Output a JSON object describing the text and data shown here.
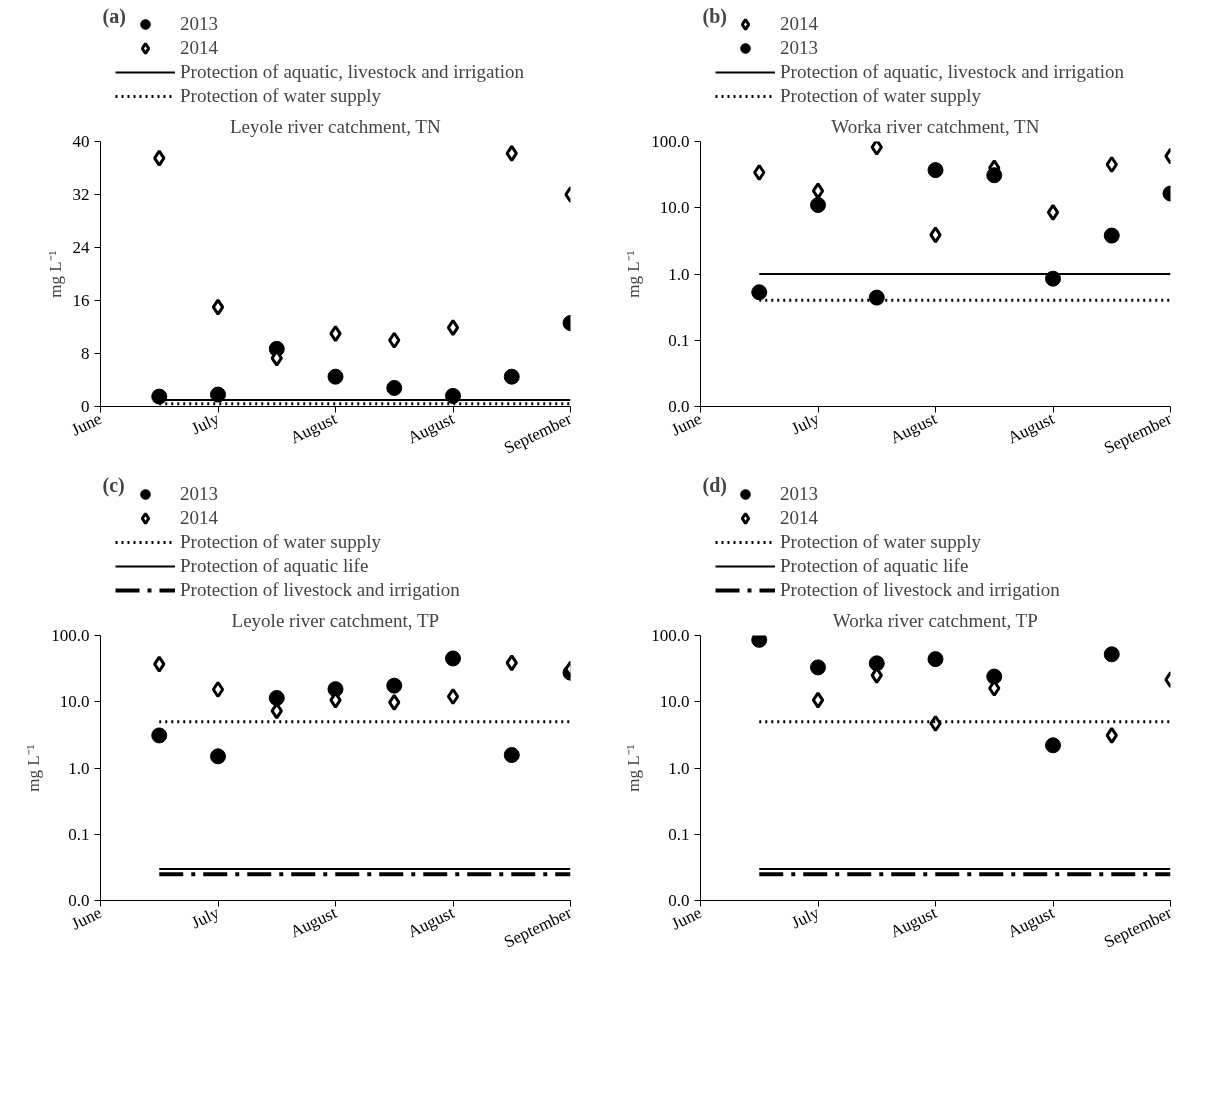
{
  "chart_data": [
    {
      "type": "scatter",
      "title": "Leyole river catchment, TN",
      "ylabel": "mg L⁻¹",
      "annotations": [
        "(a)"
      ],
      "legend": "top left",
      "categories": [
        "June",
        null,
        "July",
        null,
        "August",
        null,
        "August",
        null,
        "September"
      ],
      "ylim": [
        0,
        40
      ],
      "yticks": [
        0,
        8,
        16,
        24,
        32,
        40
      ],
      "series": [
        {
          "name": "2013",
          "color": "#000000",
          "marker": "circle",
          "values": [
            null,
            1.5,
            1.8,
            8.7,
            4.5,
            2.8,
            1.6,
            4.5,
            12.6
          ]
        },
        {
          "name": "2014",
          "color": "#000000",
          "marker": "diamond",
          "values": [
            null,
            37.5,
            15,
            7.3,
            11,
            10,
            11.9,
            38.2,
            32
          ]
        }
      ],
      "ref_lines": [
        {
          "axis": "y",
          "value": 1,
          "label": "Protection of aquatic, livestock and irrigation",
          "line_style": "solid",
          "color": "#000000"
        },
        {
          "axis": "y",
          "value": 0.4,
          "label": "Protection of water supply",
          "line_style": "dotted",
          "color": "#000000"
        }
      ]
    },
    {
      "type": "scatter",
      "title": "Worka river catchment, TN",
      "ylabel": "mg L⁻¹",
      "annotations": [
        "(b)"
      ],
      "legend": "top left",
      "log": true,
      "categories": [
        "June",
        null,
        "July",
        null,
        "August",
        null,
        "August",
        null,
        "September"
      ],
      "ylim": [
        0.01,
        100
      ],
      "yticks": [
        {
          "value": 0.01,
          "label": "0.0"
        },
        {
          "value": 0.1,
          "label": "0.1"
        },
        {
          "value": 1,
          "label": "1.0"
        },
        {
          "value": 10,
          "label": "10.0"
        },
        {
          "value": 100,
          "label": "100.0"
        }
      ],
      "series": [
        {
          "name": "2014",
          "color": "#000000",
          "marker": "diamond",
          "values": [
            null,
            34,
            18,
            82,
            3.9,
            40,
            8.5,
            45,
            60
          ]
        },
        {
          "name": "2013",
          "color": "#000000",
          "marker": "circle",
          "values": [
            null,
            0.53,
            11,
            0.44,
            37,
            31,
            0.85,
            3.8,
            16.4
          ]
        }
      ],
      "ref_lines": [
        {
          "axis": "y",
          "value": 1,
          "label": "Protection of aquatic, livestock and irrigation",
          "line_style": "solid",
          "color": "#000000"
        },
        {
          "axis": "y",
          "value": 0.4,
          "label": "Protection of water supply",
          "line_style": "dotted",
          "color": "#000000"
        }
      ]
    },
    {
      "type": "scatter",
      "title": "Leyole river catchment, TP",
      "ylabel": "mg L⁻¹",
      "annotations": [
        "(c)"
      ],
      "legend": "top left",
      "log": true,
      "categories": [
        "June",
        null,
        "July",
        null,
        "August",
        null,
        "August",
        null,
        "September"
      ],
      "ylim": [
        0.01,
        100
      ],
      "yticks": [
        {
          "value": 0.01,
          "label": "0.0"
        },
        {
          "value": 0.1,
          "label": "0.1"
        },
        {
          "value": 1,
          "label": "1.0"
        },
        {
          "value": 10,
          "label": "10.0"
        },
        {
          "value": 100,
          "label": "100.0"
        }
      ],
      "series": [
        {
          "name": "2013",
          "color": "#000000",
          "marker": "circle",
          "values": [
            null,
            3.1,
            1.5,
            11.4,
            15.5,
            17.5,
            45,
            1.57,
            27.5
          ]
        },
        {
          "name": "2014",
          "color": "#000000",
          "marker": "diamond",
          "values": [
            null,
            37,
            15.3,
            7.3,
            10.6,
            9.8,
            12,
            38.6,
            31
          ]
        }
      ],
      "ref_lines": [
        {
          "axis": "y",
          "value": 5,
          "label": "Protection of water supply",
          "line_style": "dotted",
          "color": "#000000"
        },
        {
          "axis": "y",
          "value": 0.03,
          "label": "Protection of aquatic life",
          "line_style": "solid",
          "color": "#000000"
        },
        {
          "axis": "y",
          "value": 0.025,
          "label": "Protection of livestock and irrigation",
          "line_style": "dashdot",
          "color": "#000000"
        }
      ]
    },
    {
      "type": "scatter",
      "title": "Worka river catchment, TP",
      "ylabel": "mg L⁻¹",
      "annotations": [
        "(d)"
      ],
      "legend": "top left",
      "log": true,
      "categories": [
        "June",
        null,
        "July",
        null,
        "August",
        null,
        "August",
        null,
        "September"
      ],
      "ylim": [
        0.01,
        100
      ],
      "yticks": [
        {
          "value": 0.01,
          "label": "0.0"
        },
        {
          "value": 0.1,
          "label": "0.1"
        },
        {
          "value": 1,
          "label": "1.0"
        },
        {
          "value": 10,
          "label": "10.0"
        },
        {
          "value": 100,
          "label": "100.0"
        }
      ],
      "series": [
        {
          "name": "2013",
          "color": "#000000",
          "marker": "circle",
          "values": [
            null,
            86,
            33,
            38,
            44,
            24,
            2.2,
            52,
            null
          ]
        },
        {
          "name": "2014",
          "color": "#000000",
          "marker": "diamond",
          "values": [
            null,
            null,
            10.6,
            25,
            4.7,
            16,
            null,
            3.1,
            21.6
          ]
        }
      ],
      "ref_lines": [
        {
          "axis": "y",
          "value": 5,
          "label": "Protection of water supply",
          "line_style": "dotted",
          "color": "#000000"
        },
        {
          "axis": "y",
          "value": 0.03,
          "label": "Protection of aquatic life",
          "line_style": "solid",
          "color": "#000000"
        },
        {
          "axis": "y",
          "value": 0.025,
          "label": "Protection of livestock and irrigation",
          "line_style": "dashdot",
          "color": "#000000"
        }
      ]
    }
  ]
}
